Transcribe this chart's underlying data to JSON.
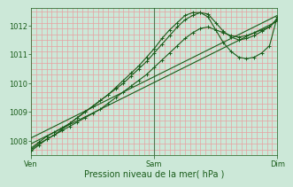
{
  "background_color": "#cce8d8",
  "plot_bg_color": "#cce8d8",
  "grid_color_h": "#e8a0a0",
  "grid_color_v": "#e8a0a0",
  "line_color": "#1a5c1a",
  "xlabel": "Pression niveau de la mer( hPa )",
  "xlabel_color": "#1a5c1a",
  "tick_color": "#1a5c1a",
  "ylim": [
    1007.5,
    1012.6
  ],
  "yticks": [
    1008,
    1009,
    1010,
    1011,
    1012
  ],
  "xtick_positions": [
    0,
    48,
    96
  ],
  "xtick_labels": [
    "Ven",
    "Sam",
    "Dim"
  ],
  "n_vgrid": 48,
  "n_hgrid_minor": 5,
  "series": [
    {
      "name": "line1_marked",
      "x": [
        0,
        3,
        6,
        9,
        12,
        15,
        18,
        21,
        24,
        27,
        30,
        33,
        36,
        39,
        42,
        45,
        48,
        51,
        54,
        57,
        60,
        63,
        66,
        69,
        72,
        75,
        78,
        81,
        84,
        87,
        90,
        93,
        96
      ],
      "y": [
        1007.65,
        1007.85,
        1008.05,
        1008.2,
        1008.35,
        1008.5,
        1008.65,
        1008.8,
        1008.95,
        1009.1,
        1009.3,
        1009.5,
        1009.7,
        1009.9,
        1010.1,
        1010.3,
        1010.55,
        1010.8,
        1011.05,
        1011.3,
        1011.55,
        1011.75,
        1011.9,
        1011.95,
        1011.85,
        1011.75,
        1011.65,
        1011.6,
        1011.65,
        1011.75,
        1011.85,
        1011.95,
        1012.2
      ],
      "marker": "+",
      "lw": 0.8
    },
    {
      "name": "line2_marked_peak",
      "x": [
        0,
        3,
        6,
        9,
        12,
        15,
        18,
        21,
        24,
        27,
        30,
        33,
        36,
        39,
        42,
        45,
        48,
        51,
        54,
        57,
        60,
        63,
        66,
        69,
        72,
        75,
        78,
        81,
        84,
        87,
        90,
        93,
        96
      ],
      "y": [
        1007.75,
        1007.95,
        1008.15,
        1008.3,
        1008.45,
        1008.6,
        1008.8,
        1009.0,
        1009.2,
        1009.4,
        1009.6,
        1009.8,
        1010.0,
        1010.25,
        1010.5,
        1010.75,
        1011.05,
        1011.35,
        1011.65,
        1011.95,
        1012.2,
        1012.35,
        1012.45,
        1012.4,
        1012.1,
        1011.8,
        1011.6,
        1011.5,
        1011.55,
        1011.65,
        1011.8,
        1011.95,
        1012.25
      ],
      "marker": "+",
      "lw": 0.8
    },
    {
      "name": "line3_straight",
      "x": [
        0,
        96
      ],
      "y": [
        1007.9,
        1012.15
      ],
      "marker": null,
      "lw": 0.8
    },
    {
      "name": "line4_straight",
      "x": [
        0,
        96
      ],
      "y": [
        1008.1,
        1012.35
      ],
      "marker": null,
      "lw": 0.8
    },
    {
      "name": "line5_marked_dip",
      "x": [
        0,
        3,
        6,
        9,
        12,
        15,
        18,
        21,
        24,
        27,
        30,
        33,
        36,
        39,
        42,
        45,
        48,
        51,
        54,
        57,
        60,
        63,
        66,
        69,
        72,
        75,
        78,
        81,
        84,
        87,
        90,
        93,
        96
      ],
      "y": [
        1007.7,
        1007.9,
        1008.05,
        1008.2,
        1008.4,
        1008.6,
        1008.8,
        1009.0,
        1009.2,
        1009.4,
        1009.6,
        1009.85,
        1010.1,
        1010.35,
        1010.6,
        1010.9,
        1011.2,
        1011.55,
        1011.85,
        1012.1,
        1012.35,
        1012.45,
        1012.45,
        1012.3,
        1011.85,
        1011.4,
        1011.1,
        1010.9,
        1010.85,
        1010.9,
        1011.05,
        1011.3,
        1012.3
      ],
      "marker": "+",
      "lw": 0.8
    }
  ],
  "vline_color": "#507850",
  "vline_positions": [
    48
  ]
}
